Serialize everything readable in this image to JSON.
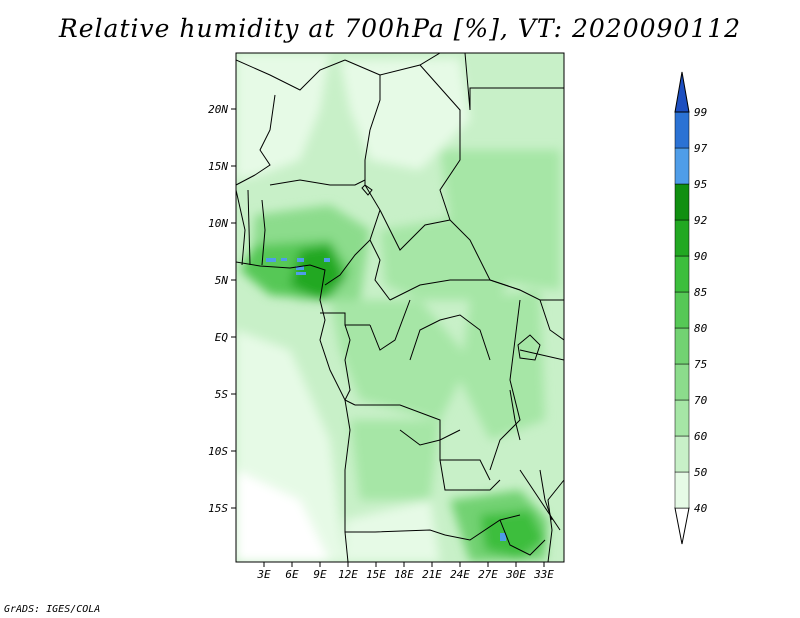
{
  "title": "Relative humidity at 700hPa [%], VT: 2020090112",
  "credit": "GrADS: IGES/COLA",
  "map": {
    "lat_ticks": [
      "20N",
      "15N",
      "10N",
      "5N",
      "EQ",
      "5S",
      "10S",
      "15S"
    ],
    "lon_ticks": [
      "3E",
      "6E",
      "9E",
      "12E",
      "15E",
      "18E",
      "21E",
      "24E",
      "27E",
      "30E",
      "33E"
    ]
  },
  "colorbar": {
    "levels": [
      "40",
      "50",
      "60",
      "70",
      "75",
      "80",
      "85",
      "90",
      "92",
      "95",
      "97",
      "99"
    ],
    "colors": [
      "#ffffff",
      "#e6fae6",
      "#c8f0c8",
      "#a6e6a6",
      "#8cdc8c",
      "#72d272",
      "#56c856",
      "#3cbe3c",
      "#22a822",
      "#108f10",
      "#4f9de8",
      "#2b72d4",
      "#1d4fc0"
    ]
  }
}
